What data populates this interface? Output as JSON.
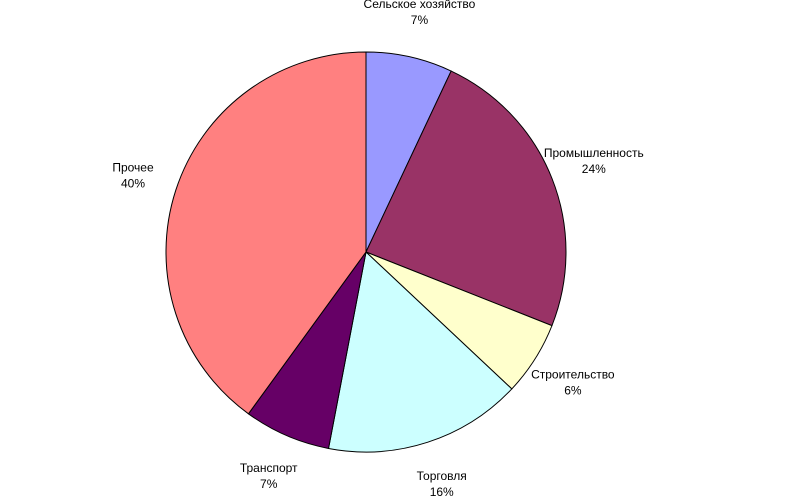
{
  "chart_data": {
    "type": "pie",
    "categories": [
      "Сельское хозяйство",
      "Промышленность",
      "Строительство",
      "Торговля",
      "Транспорт",
      "Прочее"
    ],
    "values": [
      7,
      24,
      6,
      16,
      7,
      40
    ],
    "value_labels": [
      "7%",
      "24%",
      "6%",
      "16%",
      "7%",
      "40%"
    ],
    "colors": [
      "#9999ff",
      "#993366",
      "#ffffcc",
      "#ccffff",
      "#660066",
      "#ff8080"
    ]
  }
}
